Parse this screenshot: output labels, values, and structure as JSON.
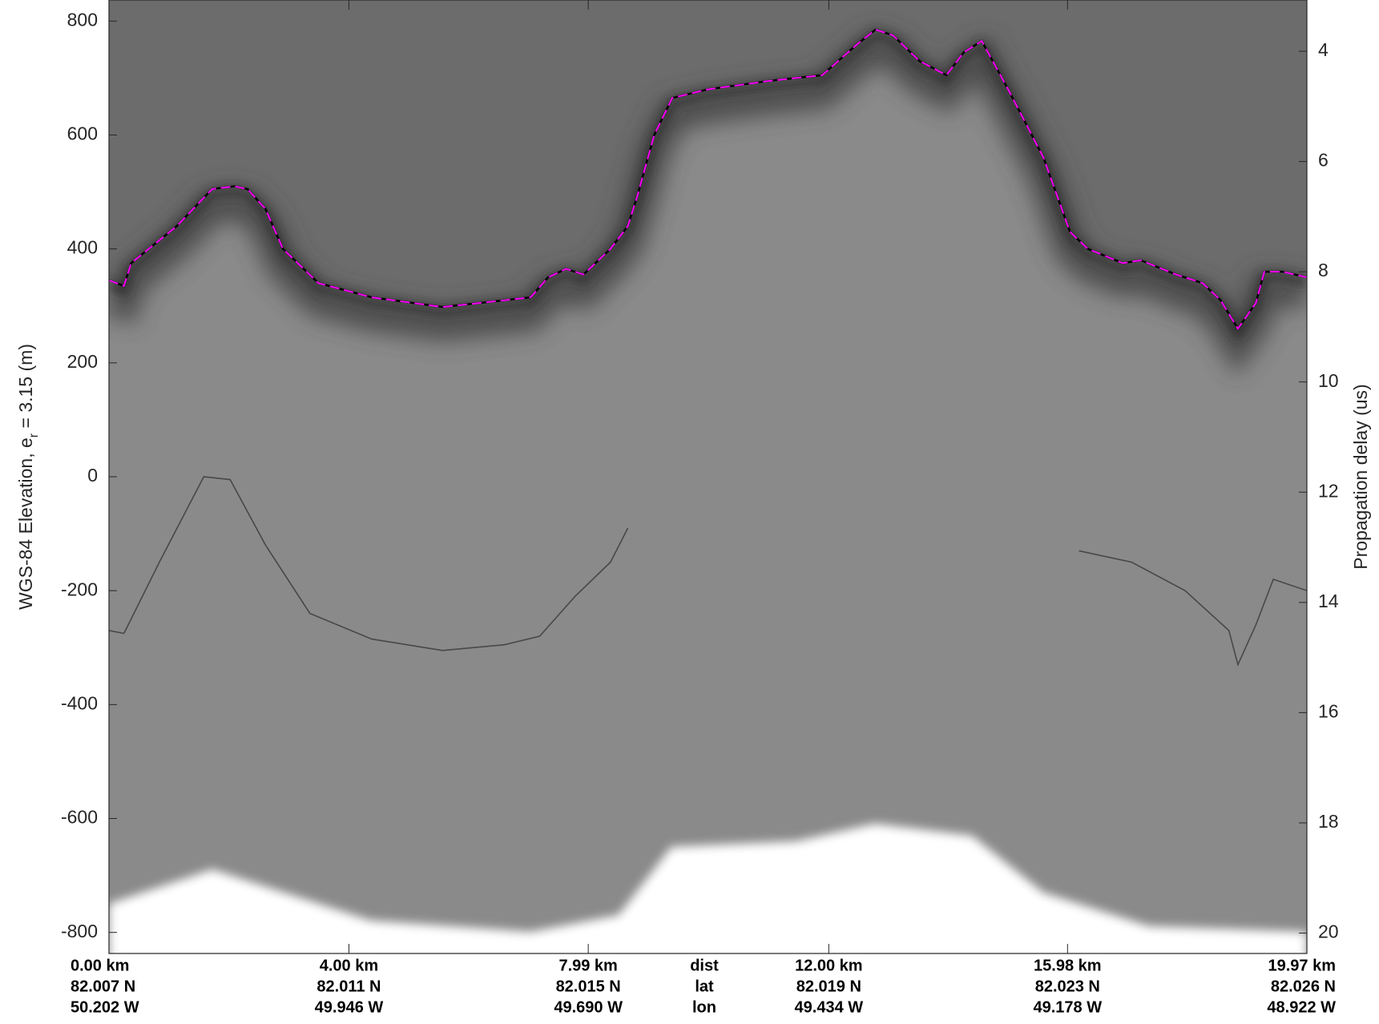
{
  "chart_data": {
    "type": "line",
    "ylabel_parts": [
      "WGS-84 Elevation, e",
      "r",
      " = 3.15 (m)"
    ],
    "y2label": "Propagation delay (us)",
    "row_labels": [
      "dist",
      "lat",
      "lon"
    ],
    "xlim": [
      0,
      19.97
    ],
    "xticks": [
      {
        "value": 0,
        "label": "0.00 km",
        "lat": "82.007 N",
        "lon": "50.202 W"
      },
      {
        "value": 4.0,
        "label": "4.00 km",
        "lat": "82.011 N",
        "lon": "49.946 W"
      },
      {
        "value": 7.99,
        "label": "7.99 km",
        "lat": "82.015 N",
        "lon": "49.690 W"
      },
      {
        "value": 12.0,
        "label": "12.00 km",
        "lat": "82.019 N",
        "lon": "49.434 W"
      },
      {
        "value": 15.98,
        "label": "15.98 km",
        "lat": "82.023 N",
        "lon": "49.178 W"
      },
      {
        "value": 19.97,
        "label": "19.97 km",
        "lat": "82.026 N",
        "lon": "48.922 W"
      }
    ],
    "ylim": [
      -837,
      837
    ],
    "yticks": [
      -800,
      -600,
      -400,
      -200,
      0,
      200,
      400,
      600,
      800
    ],
    "y2lim": [
      20.37,
      3.07
    ],
    "y2ticks": [
      4,
      6,
      8,
      10,
      12,
      14,
      16,
      18,
      20
    ],
    "series": [
      {
        "color": "#ff00ff",
        "dashed": true,
        "x": [
          0,
          0.25,
          0.37,
          1.13,
          1.72,
          2.09,
          2.31,
          2.61,
          2.9,
          3.49,
          4.38,
          5.56,
          6.44,
          7.03,
          7.32,
          7.62,
          7.91,
          8.36,
          8.65,
          8.8,
          9.09,
          9.39,
          9.98,
          11.01,
          11.89,
          12.48,
          12.78,
          13.07,
          13.51,
          13.96,
          14.25,
          14.55,
          14.99,
          15.58,
          16.02,
          16.32,
          16.9,
          17.2,
          17.79,
          18.23,
          18.53,
          18.82,
          19.12,
          19.26,
          19.56,
          19.97
        ],
        "values": [
          345,
          335,
          375,
          440,
          505,
          510,
          505,
          470,
          400,
          340,
          315,
          298,
          308,
          315,
          350,
          365,
          355,
          400,
          440,
          490,
          600,
          665,
          680,
          695,
          705,
          760,
          785,
          775,
          730,
          705,
          745,
          765,
          680,
          560,
          430,
          400,
          375,
          380,
          355,
          340,
          310,
          260,
          305,
          360,
          360,
          350
        ]
      },
      {
        "color": "#3c3c3c",
        "dashed": false,
        "x": [
          0,
          0.25,
          0.84,
          1.58,
          2.02,
          2.61,
          3.35,
          4.38,
          5.56,
          6.59,
          7.18,
          7.77,
          8.36,
          8.65,
          9.0,
          16.17,
          17.05,
          17.94,
          18.67,
          18.82,
          19.12,
          19.41,
          19.97
        ],
        "values": [
          -270,
          -275,
          -150,
          0,
          -5,
          -120,
          -240,
          -285,
          -305,
          -295,
          -280,
          -210,
          -150,
          -90,
          null,
          -130,
          -150,
          -200,
          -270,
          -330,
          -260,
          -180,
          -200
        ]
      }
    ]
  }
}
